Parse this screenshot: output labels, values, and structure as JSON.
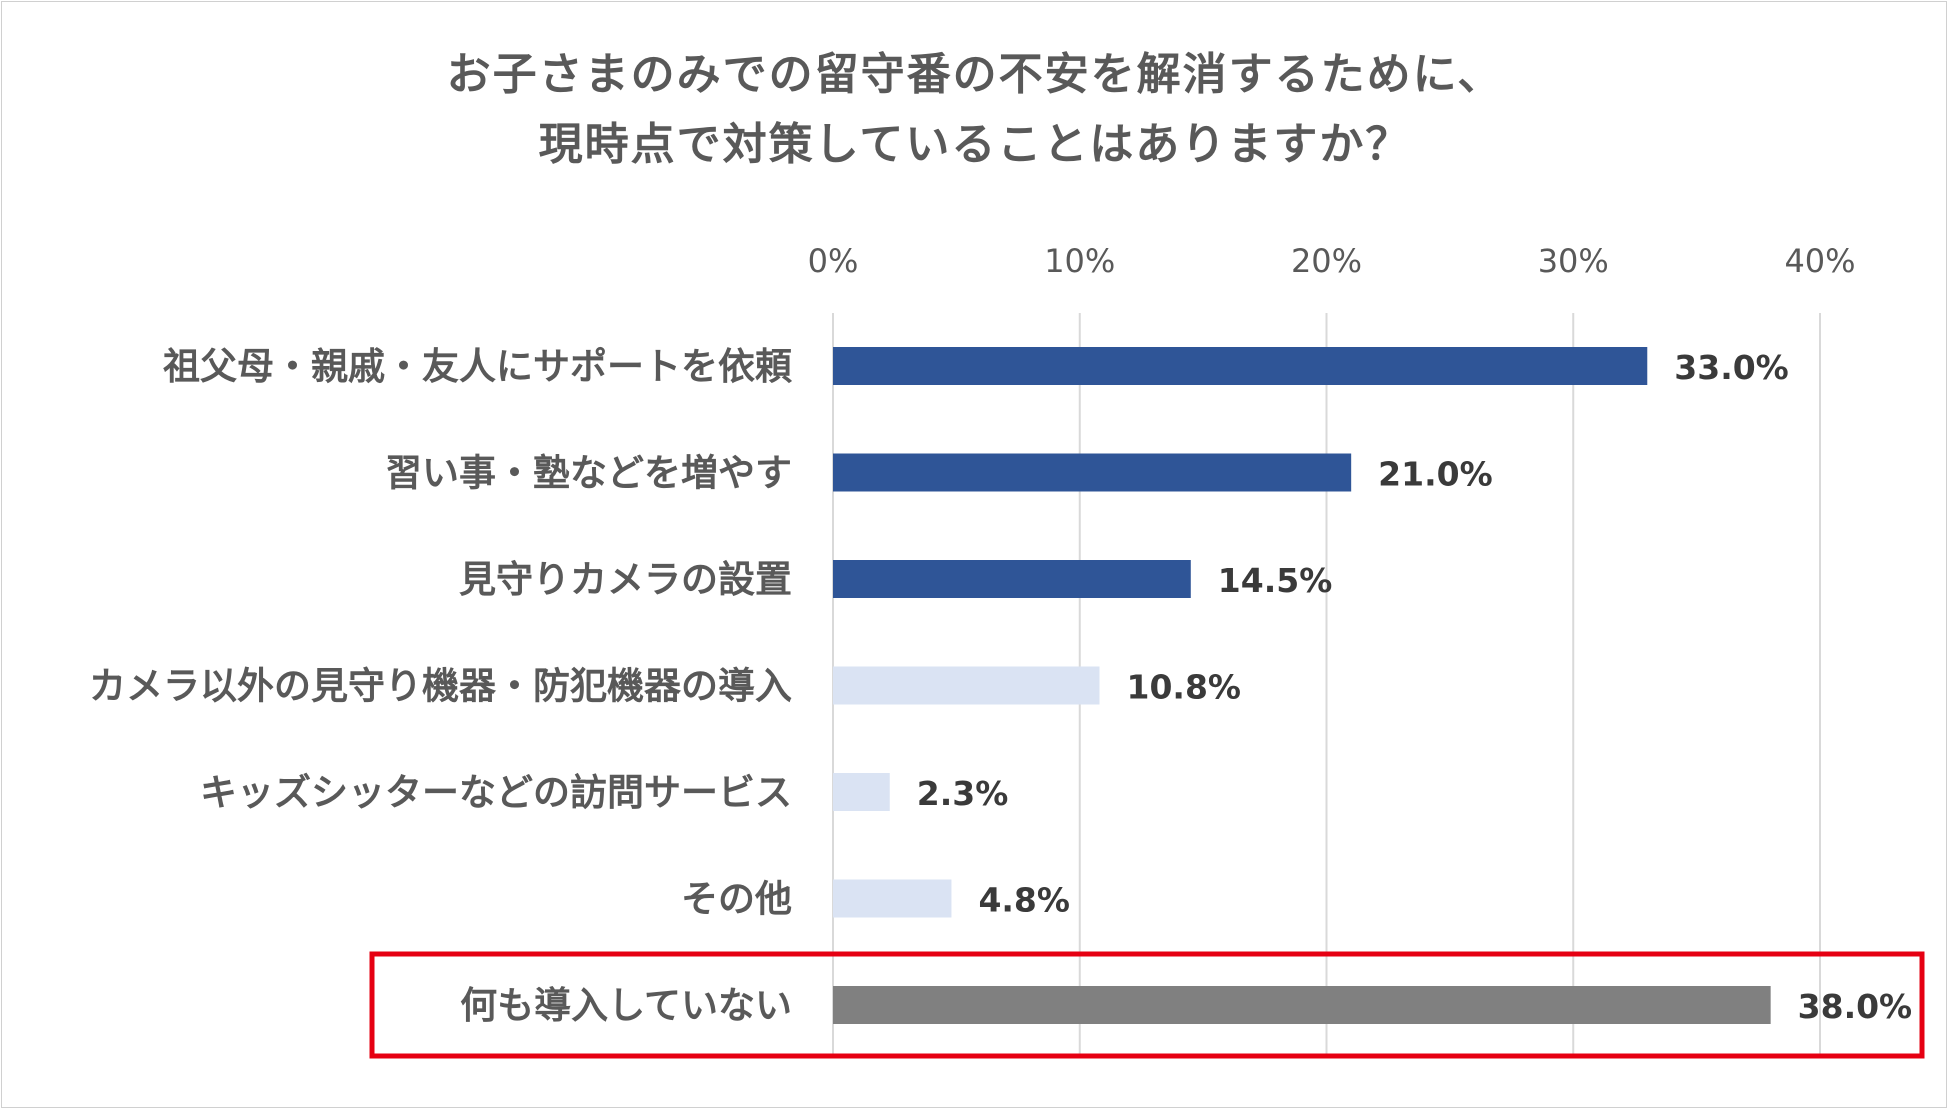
{
  "chart_data": {
    "type": "bar",
    "orientation": "horizontal",
    "title": [
      "お子さまのみでの留守番の不安を解消するために、",
      "現時点で対策していることはありますか？"
    ],
    "xlim": [
      0,
      40
    ],
    "x_ticks": [
      "0%",
      "10%",
      "20%",
      "30%",
      "40%"
    ],
    "x_tick_values": [
      0,
      10,
      20,
      30,
      40
    ],
    "grid": true,
    "categories": [
      "祖父母・親戚・友人にサポートを依頼",
      "習い事・塾などを増やす",
      "見守りカメラの設置",
      "カメラ以外の見守り機器・防犯機器の導入",
      "キッズシッターなどの訪問サービス",
      "その他",
      "何も導入していない"
    ],
    "values": [
      33.0,
      21.0,
      14.5,
      10.8,
      2.3,
      4.8,
      38.0
    ],
    "value_labels": [
      "33.0%",
      "21.0%",
      "14.5%",
      "10.8%",
      "2.3%",
      "4.8%",
      "38.0%"
    ],
    "bar_colors": [
      "#2f5597",
      "#2f5597",
      "#2f5597",
      "#dae3f3",
      "#dae3f3",
      "#dae3f3",
      "#808080"
    ],
    "highlight_index": 6,
    "highlight_color": "#e60012",
    "grid_color": "#d9d9d9"
  }
}
